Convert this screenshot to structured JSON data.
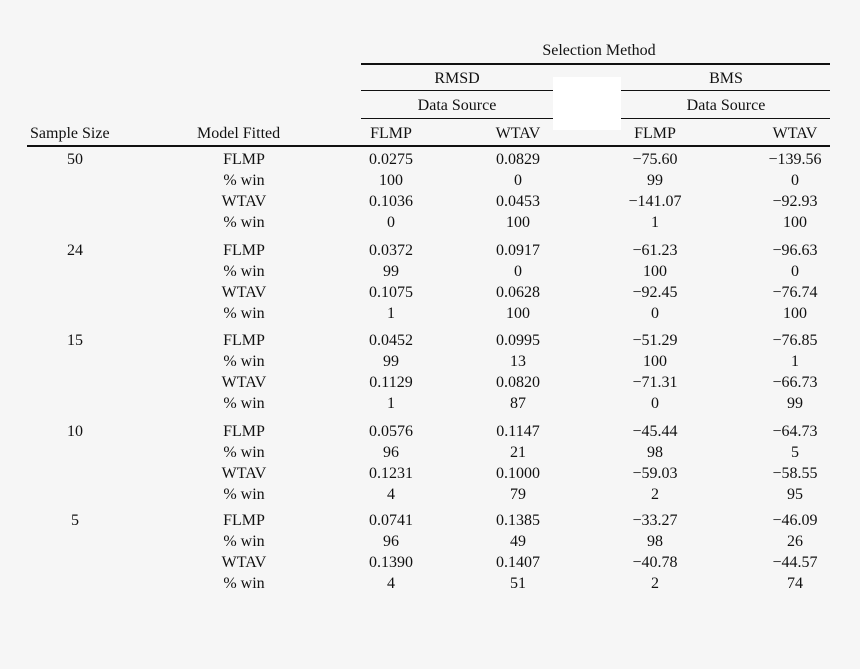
{
  "header": {
    "selection_method": "Selection Method",
    "rmsd": "RMSD",
    "bms": "BMS",
    "data_source": "Data Source",
    "sample_size": "Sample Size",
    "model_fitted": "Model Fitted",
    "flmp": "FLMP",
    "wtav": "WTAV"
  },
  "groups": [
    {
      "size": "50",
      "rows": [
        {
          "label": "FLMP",
          "v": [
            "0.0275",
            "0.0829",
            "−75.60",
            "−139.56"
          ]
        },
        {
          "label": "% win",
          "v": [
            "100",
            "0",
            "99",
            "0"
          ]
        },
        {
          "label": "WTAV",
          "v": [
            "0.1036",
            "0.0453",
            "−141.07",
            "−92.93"
          ]
        },
        {
          "label": "% win",
          "v": [
            "0",
            "100",
            "1",
            "100"
          ]
        }
      ]
    },
    {
      "size": "24",
      "rows": [
        {
          "label": "FLMP",
          "v": [
            "0.0372",
            "0.0917",
            "−61.23",
            "−96.63"
          ]
        },
        {
          "label": "% win",
          "v": [
            "99",
            "0",
            "100",
            "0"
          ]
        },
        {
          "label": "WTAV",
          "v": [
            "0.1075",
            "0.0628",
            "−92.45",
            "−76.74"
          ]
        },
        {
          "label": "% win",
          "v": [
            "1",
            "100",
            "0",
            "100"
          ]
        }
      ]
    },
    {
      "size": "15",
      "rows": [
        {
          "label": "FLMP",
          "v": [
            "0.0452",
            "0.0995",
            "−51.29",
            "−76.85"
          ]
        },
        {
          "label": "% win",
          "v": [
            "99",
            "13",
            "100",
            "1"
          ]
        },
        {
          "label": "WTAV",
          "v": [
            "0.1129",
            "0.0820",
            "−71.31",
            "−66.73"
          ]
        },
        {
          "label": "% win",
          "v": [
            "1",
            "87",
            "0",
            "99"
          ]
        }
      ]
    },
    {
      "size": "10",
      "rows": [
        {
          "label": "FLMP",
          "v": [
            "0.0576",
            "0.1147",
            "−45.44",
            "−64.73"
          ]
        },
        {
          "label": "% win",
          "v": [
            "96",
            "21",
            "98",
            "5"
          ]
        },
        {
          "label": "WTAV",
          "v": [
            "0.1231",
            "0.1000",
            "−59.03",
            "−58.55"
          ]
        },
        {
          "label": "% win",
          "v": [
            "4",
            "79",
            "2",
            "95"
          ]
        }
      ]
    },
    {
      "size": "5",
      "rows": [
        {
          "label": "FLMP",
          "v": [
            "0.0741",
            "0.1385",
            "−33.27",
            "−46.09"
          ]
        },
        {
          "label": "% win",
          "v": [
            "96",
            "49",
            "98",
            "26"
          ]
        },
        {
          "label": "WTAV",
          "v": [
            "0.1390",
            "0.1407",
            "−40.78",
            "−44.57"
          ]
        },
        {
          "label": "% win",
          "v": [
            "4",
            "51",
            "2",
            "74"
          ]
        }
      ]
    }
  ]
}
